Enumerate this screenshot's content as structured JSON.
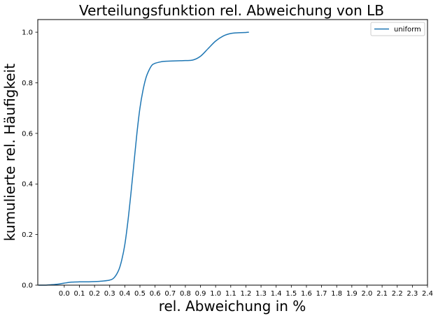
{
  "chart_data": {
    "type": "line",
    "title": "Verteilungsfunktion rel. Abweichung von LB",
    "xlabel": "rel. Abweichung in %",
    "ylabel": "kumulierte rel. Häufigkeit",
    "xlim": [
      -0.175,
      2.4
    ],
    "ylim": [
      0.0,
      1.05
    ],
    "x_ticks": [
      0.0,
      0.1,
      0.2,
      0.3,
      0.4,
      0.5,
      0.6,
      0.7,
      0.8,
      0.9,
      1.0,
      1.1,
      1.2,
      1.3,
      1.4,
      1.5,
      1.6,
      1.7,
      1.8,
      1.9,
      2.0,
      2.1,
      2.2,
      2.3,
      2.4
    ],
    "x_tick_labels": [
      "0.0",
      "0.1",
      "0.2",
      "0.3",
      "0.4",
      "0.5",
      "0.6",
      "0.7",
      "0.8",
      "0.9",
      "1.0",
      "1.1",
      "1.2",
      "1.3",
      "1.4",
      "1.5",
      "1.6",
      "1.7",
      "1.8",
      "1.9",
      "2.0",
      "2.1",
      "2.2",
      "2.3",
      "2.4"
    ],
    "y_ticks": [
      0.0,
      0.2,
      0.4,
      0.6,
      0.8,
      1.0
    ],
    "y_tick_labels": [
      "0.0",
      "0.2",
      "0.4",
      "0.6",
      "0.8",
      "1.0"
    ],
    "grid": false,
    "legend_position": "top-right",
    "series": [
      {
        "name": "uniform",
        "color": "#1f77b4",
        "x": [
          -0.17,
          -0.12,
          -0.08,
          -0.04,
          0.0,
          0.05,
          0.1,
          0.15,
          0.2,
          0.25,
          0.3,
          0.33,
          0.36,
          0.38,
          0.4,
          0.42,
          0.44,
          0.46,
          0.48,
          0.5,
          0.52,
          0.54,
          0.56,
          0.58,
          0.6,
          0.63,
          0.66,
          0.7,
          0.75,
          0.8,
          0.85,
          0.9,
          0.95,
          1.0,
          1.05,
          1.1,
          1.15,
          1.2,
          1.22
        ],
        "y": [
          0.0,
          0.0,
          0.002,
          0.004,
          0.008,
          0.012,
          0.013,
          0.013,
          0.014,
          0.016,
          0.02,
          0.03,
          0.06,
          0.1,
          0.16,
          0.25,
          0.36,
          0.48,
          0.6,
          0.7,
          0.77,
          0.82,
          0.85,
          0.87,
          0.877,
          0.882,
          0.885,
          0.886,
          0.887,
          0.888,
          0.89,
          0.905,
          0.935,
          0.965,
          0.985,
          0.995,
          0.998,
          0.999,
          1.0
        ]
      }
    ]
  }
}
